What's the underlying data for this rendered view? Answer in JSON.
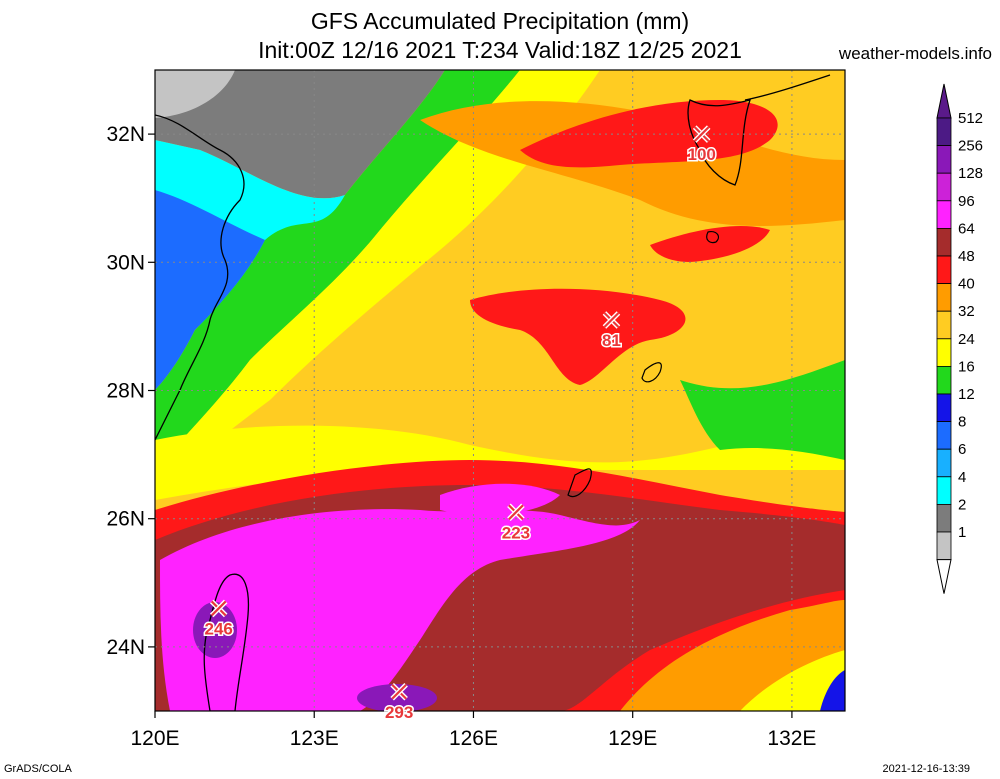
{
  "title_line1": "GFS Accumulated Precipitation (mm)",
  "title_line2": "Init:00Z 12/16 2021 T:234 Valid:18Z 12/25 2021",
  "source": "weather-models.info",
  "footer_left": "GrADS/COLA",
  "footer_right": "2021-12-16-13:39",
  "map": {
    "lon_range": [
      120,
      133
    ],
    "lat_range": [
      23,
      33
    ],
    "lon_ticks": [
      {
        "value": 120,
        "label": "120E"
      },
      {
        "value": 123,
        "label": "123E"
      },
      {
        "value": 126,
        "label": "126E"
      },
      {
        "value": 129,
        "label": "129E"
      },
      {
        "value": 132,
        "label": "132E"
      }
    ],
    "lat_ticks": [
      {
        "value": 24,
        "label": "24N"
      },
      {
        "value": 26,
        "label": "26N"
      },
      {
        "value": 28,
        "label": "28N"
      },
      {
        "value": 30,
        "label": "30N"
      },
      {
        "value": 32,
        "label": "32N"
      }
    ],
    "grid": "dotted"
  },
  "markers": [
    {
      "label": "100",
      "lon": 130.3,
      "lat": 32.0
    },
    {
      "label": "81",
      "lon": 128.6,
      "lat": 29.1
    },
    {
      "label": "223",
      "lon": 126.8,
      "lat": 26.1
    },
    {
      "label": "246",
      "lon": 121.2,
      "lat": 24.6
    },
    {
      "label": "293",
      "lon": 124.6,
      "lat": 23.3
    }
  ],
  "colorbar": {
    "levels": [
      {
        "label": "512",
        "color": "#4c1a85"
      },
      {
        "label": "256",
        "color": "#8a18b8"
      },
      {
        "label": "128",
        "color": "#cc22d8"
      },
      {
        "label": "96",
        "color": "#ff22ff"
      },
      {
        "label": "64",
        "color": "#a52c2c"
      },
      {
        "label": "48",
        "color": "#ff1818"
      },
      {
        "label": "40",
        "color": "#ff9c00"
      },
      {
        "label": "32",
        "color": "#ffcc22"
      },
      {
        "label": "24",
        "color": "#ffff00"
      },
      {
        "label": "16",
        "color": "#22d81c"
      },
      {
        "label": "12",
        "color": "#1414e8"
      },
      {
        "label": "8",
        "color": "#1c6cff"
      },
      {
        "label": "6",
        "color": "#18b0ff"
      },
      {
        "label": "4",
        "color": "#00ffff"
      },
      {
        "label": "2",
        "color": "#7c7c7c"
      },
      {
        "label": "1",
        "color": "#c4c4c4"
      }
    ],
    "top_color": "#5a1a8a",
    "bottom_color": "#ffffff"
  }
}
